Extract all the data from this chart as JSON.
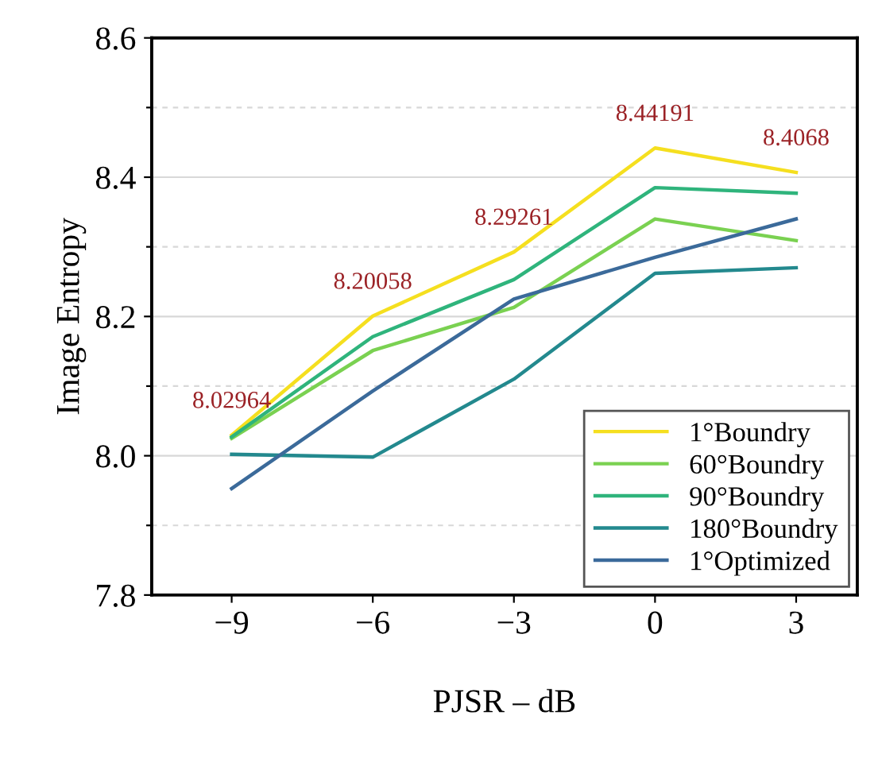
{
  "chart_data": {
    "type": "line",
    "xlabel": "PJSR – dB",
    "ylabel": "Image Entropy",
    "x": [
      -9,
      -6,
      -3,
      0,
      3
    ],
    "series": [
      {
        "name": "1°Boundry",
        "color": "#f5df1f",
        "values": [
          8.02964,
          8.20058,
          8.29261,
          8.44191,
          8.4068
        ]
      },
      {
        "name": "60°Boundry",
        "color": "#7ad151",
        "values": [
          8.025,
          8.151,
          8.213,
          8.34,
          8.309
        ]
      },
      {
        "name": "90°Boundry",
        "color": "#2fb47c",
        "values": [
          8.027,
          8.171,
          8.253,
          8.385,
          8.377
        ]
      },
      {
        "name": "180°Boundry",
        "color": "#23898e",
        "values": [
          8.002,
          7.998,
          8.11,
          8.262,
          8.27
        ]
      },
      {
        "name": "1°Optimized",
        "color": "#3b6a9a",
        "values": [
          7.953,
          8.093,
          8.225,
          8.285,
          8.34
        ]
      }
    ],
    "annotations": [
      {
        "text": "8.02964",
        "x": -9,
        "y": 8.02964
      },
      {
        "text": "8.20058",
        "x": -6,
        "y": 8.20058
      },
      {
        "text": "8.29261",
        "x": -3,
        "y": 8.29261
      },
      {
        "text": "8.44191",
        "x": 0,
        "y": 8.44191
      },
      {
        "text": "8.4068",
        "x": 3,
        "y": 8.4068
      }
    ],
    "xlim": [
      -10.7,
      4.3
    ],
    "ylim": [
      7.8,
      8.6
    ],
    "xticks": [
      {
        "value": -9,
        "label": "−9"
      },
      {
        "value": -6,
        "label": "−6"
      },
      {
        "value": -3,
        "label": "−3"
      },
      0,
      3
    ],
    "yticks": [
      {
        "value": 7.8,
        "label": "7.8"
      },
      {
        "value": 8.0,
        "label": "8.0"
      },
      {
        "value": 8.2,
        "label": "8.2"
      },
      {
        "value": 8.4,
        "label": "8.4"
      },
      {
        "value": 8.6,
        "label": "8.6"
      },
      {
        "value": 7.9,
        "label": null
      },
      {
        "value": 8.1,
        "label": null
      },
      {
        "value": 8.3,
        "label": null
      },
      {
        "value": 8.5,
        "label": null
      }
    ],
    "grid": "y",
    "legend": "bottom right",
    "marker": "none",
    "line_style": "solid"
  }
}
